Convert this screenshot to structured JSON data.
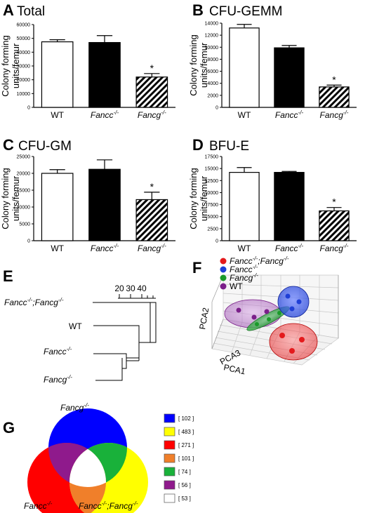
{
  "panels": [
    {
      "letter": "A",
      "title": "Total"
    },
    {
      "letter": "B",
      "title": "CFU-GEMM"
    },
    {
      "letter": "C",
      "title": "CFU-GM"
    },
    {
      "letter": "D",
      "title": "BFU-E"
    },
    {
      "letter": "E",
      "title": ""
    },
    {
      "letter": "F",
      "title": ""
    },
    {
      "letter": "G",
      "title": ""
    }
  ],
  "chart_data": [
    {
      "panel": "A",
      "type": "bar",
      "title": "Total",
      "ylabel": [
        "Colony forming",
        "units/femur"
      ],
      "categories": [
        "WT",
        "Fancc-/-",
        "Fancg-/-"
      ],
      "category_labels": [
        {
          "base": "WT",
          "sup": "",
          "italic": false
        },
        {
          "base": "Fancc",
          "sup": "-/-",
          "italic": true
        },
        {
          "base": "Fancg",
          "sup": "-/-",
          "italic": true
        }
      ],
      "values": [
        47500,
        47000,
        22000
      ],
      "errors": [
        1500,
        5000,
        2500
      ],
      "significant": [
        false,
        false,
        true
      ],
      "significance_marker": "*",
      "ylim": [
        0,
        60000
      ],
      "yticks": [
        0,
        10000,
        20000,
        30000,
        40000,
        50000,
        60000
      ],
      "fills": [
        "white",
        "black",
        "hatched"
      ]
    },
    {
      "panel": "B",
      "type": "bar",
      "title": "CFU-GEMM",
      "ylabel": [
        "Colony forming",
        "units/femur"
      ],
      "categories": [
        "WT",
        "Fancc-/-",
        "Fancg-/-"
      ],
      "category_labels": [
        {
          "base": "WT",
          "sup": "",
          "italic": false
        },
        {
          "base": "Fancc",
          "sup": "-/-",
          "italic": true
        },
        {
          "base": "Fancg",
          "sup": "-/-",
          "italic": true
        }
      ],
      "values": [
        13200,
        9900,
        3400
      ],
      "errors": [
        600,
        400,
        300
      ],
      "significant": [
        false,
        false,
        true
      ],
      "significance_marker": "*",
      "ylim": [
        0,
        14000
      ],
      "yticks": [
        0,
        2000,
        4000,
        6000,
        8000,
        10000,
        12000,
        14000
      ],
      "fills": [
        "white",
        "black",
        "hatched"
      ]
    },
    {
      "panel": "C",
      "type": "bar",
      "title": "CFU-GM",
      "ylabel": [
        "Colony forming",
        "units/femur"
      ],
      "categories": [
        "WT",
        "Fancc-/-",
        "Fancg-/-"
      ],
      "category_labels": [
        {
          "base": "WT",
          "sup": "",
          "italic": false
        },
        {
          "base": "Fancc",
          "sup": "-/-",
          "italic": true
        },
        {
          "base": "Fancg",
          "sup": "-/-",
          "italic": true
        }
      ],
      "values": [
        20000,
        21200,
        12200
      ],
      "errors": [
        1100,
        2800,
        2200
      ],
      "significant": [
        false,
        false,
        true
      ],
      "significance_marker": "*",
      "ylim": [
        0,
        25000
      ],
      "yticks": [
        0,
        5000,
        10000,
        15000,
        20000,
        25000
      ],
      "fills": [
        "white",
        "black",
        "hatched"
      ]
    },
    {
      "panel": "D",
      "type": "bar",
      "title": "BFU-E",
      "ylabel": [
        "Colony forming",
        "units/femur"
      ],
      "categories": [
        "WT",
        "Fancc-/-",
        "Fancg-/-"
      ],
      "category_labels": [
        {
          "base": "WT",
          "sup": "",
          "italic": false
        },
        {
          "base": "Fancc",
          "sup": "-/-",
          "italic": true
        },
        {
          "base": "Fancg",
          "sup": "-/-",
          "italic": true
        }
      ],
      "values": [
        14200,
        14200,
        6200
      ],
      "errors": [
        1000,
        200,
        700
      ],
      "significant": [
        false,
        false,
        true
      ],
      "significance_marker": "*",
      "ylim": [
        0,
        17500
      ],
      "yticks": [
        0,
        2500,
        5000,
        7500,
        10000,
        12500,
        15000,
        17500
      ],
      "fills": [
        "white",
        "black",
        "hatched"
      ]
    }
  ],
  "dendrogram": {
    "leaves": [
      {
        "base": "Fancc",
        "sup": "-/-",
        "suffix": ";",
        "base2": "Fancg",
        "sup2": "-/-",
        "italic": true
      },
      {
        "base": "WT",
        "sup": "",
        "italic": false
      },
      {
        "base": "Fancc",
        "sup": "-/-",
        "italic": true
      },
      {
        "base": "Fancg",
        "sup": "-/-",
        "italic": true
      }
    ],
    "scale_ticks": [
      20,
      30,
      40
    ]
  },
  "pca": {
    "axes": [
      "PCA1",
      "PCA2",
      "PCA3"
    ],
    "legend": [
      {
        "base": "Fancc",
        "sup": "-/-",
        "suffix": ";",
        "base2": "Fancg",
        "sup2": "-/-",
        "italic": true,
        "color": "#e41a1c"
      },
      {
        "base": "Fancc",
        "sup": "-/-",
        "italic": true,
        "color": "#1f3fd6"
      },
      {
        "base": "Fancg",
        "sup": "-/-",
        "italic": true,
        "color": "#1a9a2a"
      },
      {
        "base": "WT",
        "sup": "",
        "italic": false,
        "color": "#7b1f8a"
      }
    ]
  },
  "venn": {
    "sets": [
      {
        "base": "Fancg",
        "sup": "-/-",
        "italic": true,
        "color": "#0000ff"
      },
      {
        "base": "Fancc",
        "sup": "-/-",
        "italic": true,
        "color": "#ff0000"
      },
      {
        "base": "Fancc",
        "sup": "-/-",
        "suffix": ";",
        "base2": "Fancg",
        "sup2": "-/-",
        "italic": true,
        "color": "#ffff00"
      }
    ],
    "legend": [
      {
        "color": "#0000ff",
        "label": "[ 102 ]"
      },
      {
        "color": "#ffff00",
        "label": "[ 483 ]"
      },
      {
        "color": "#ff0000",
        "label": "[ 271 ]"
      },
      {
        "color": "#f07f2a",
        "label": "[ 101 ]"
      },
      {
        "color": "#19b13a",
        "label": "[ 74 ]"
      },
      {
        "color": "#8f1a8c",
        "label": "[ 56 ]"
      },
      {
        "color": "#ffffff",
        "label": "[ 53 ]"
      }
    ]
  }
}
